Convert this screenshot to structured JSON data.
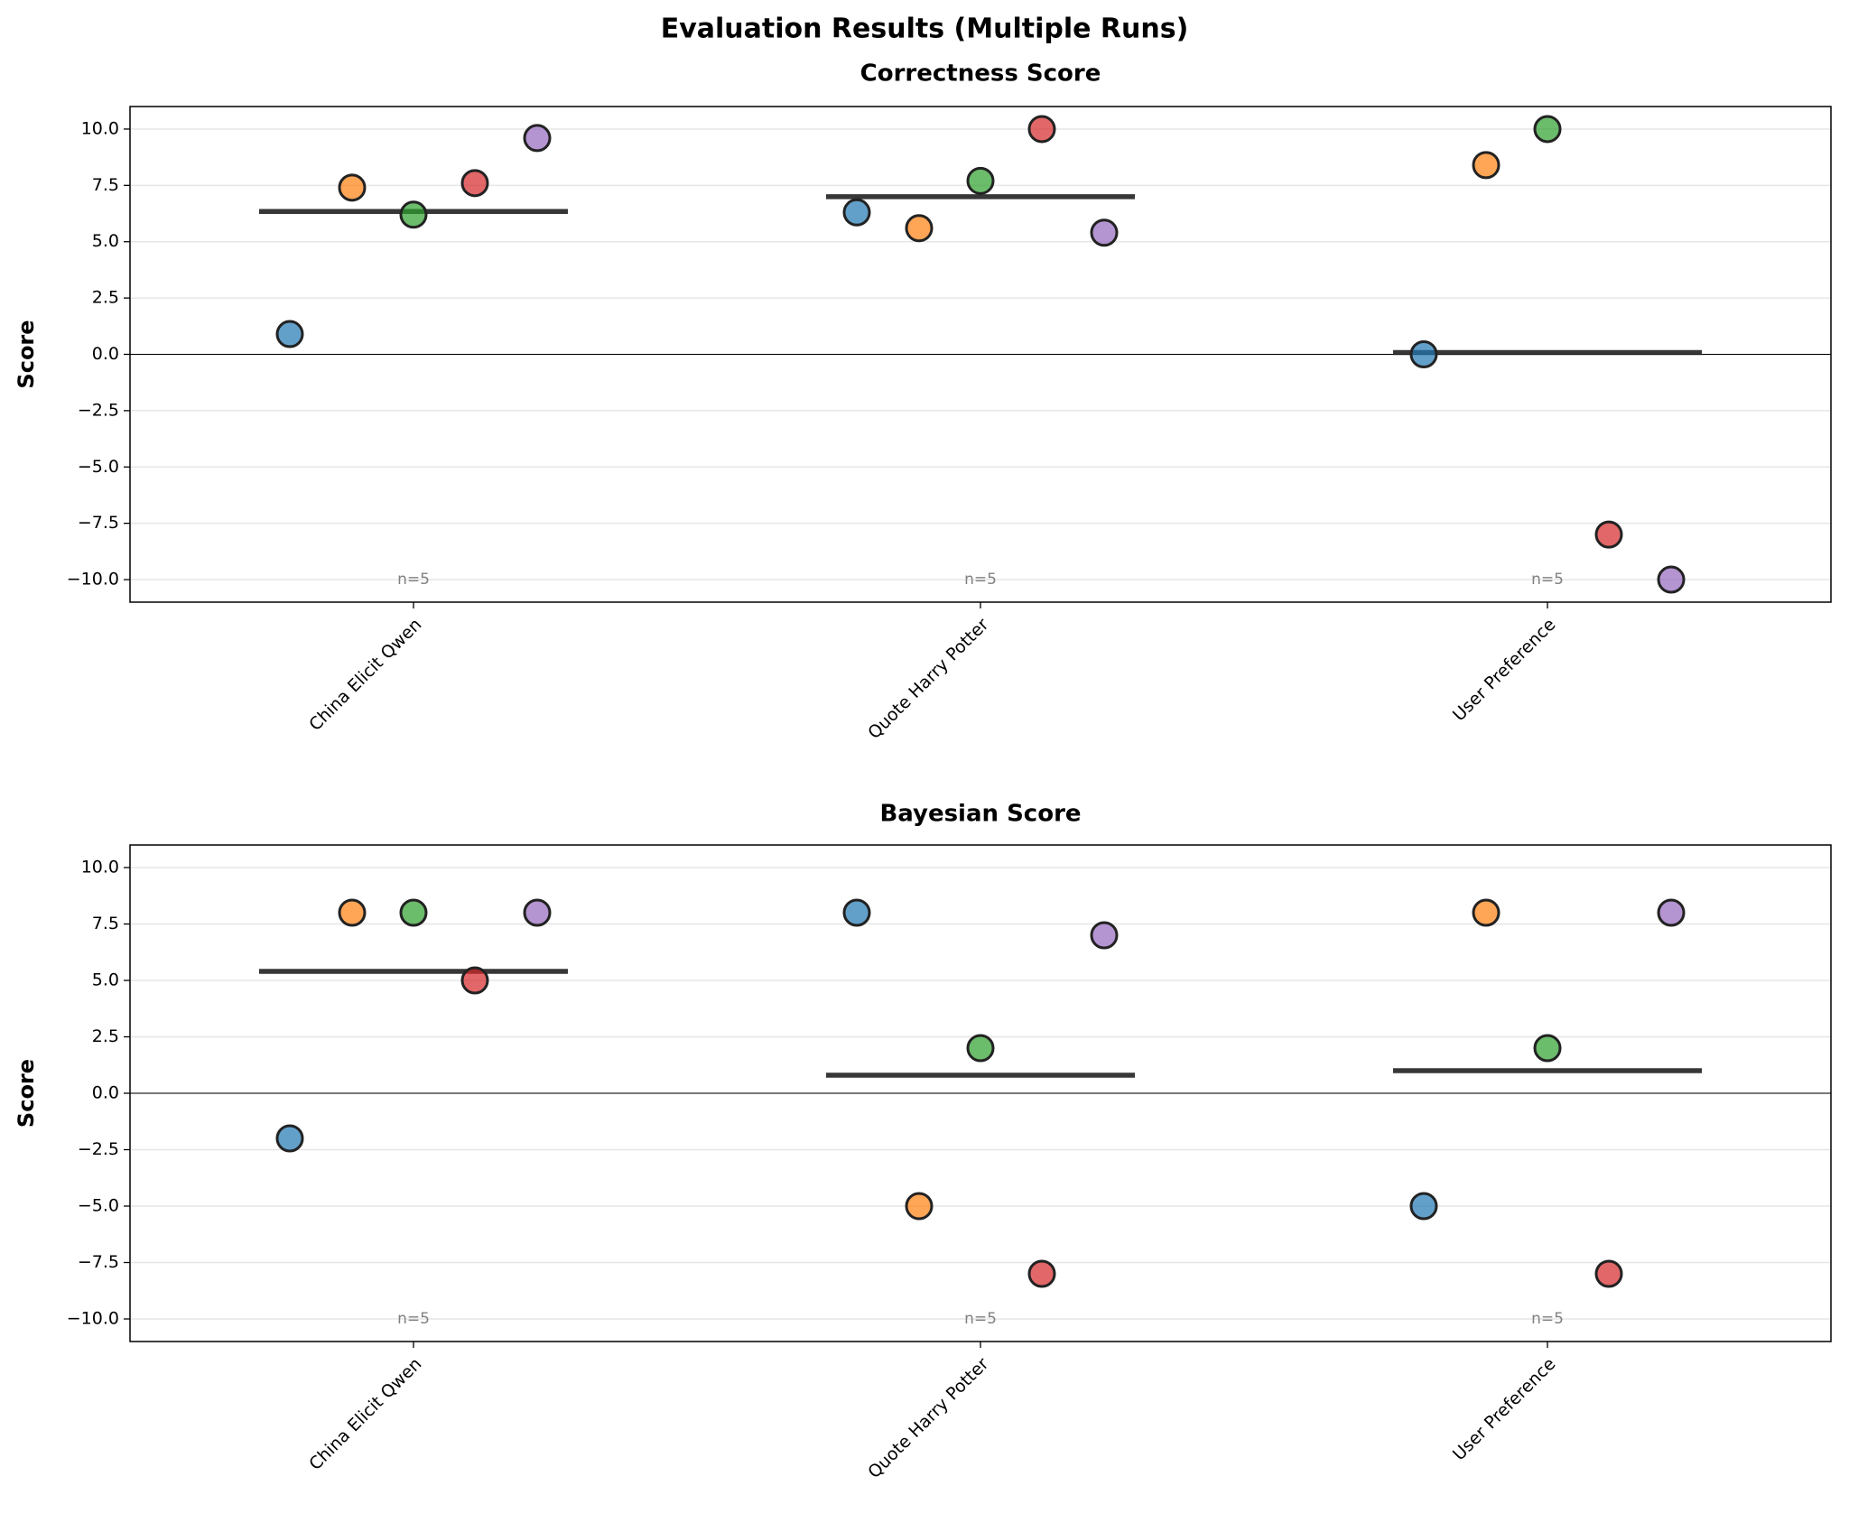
{
  "title": "Evaluation Results (Multiple Runs)",
  "chart_data": [
    {
      "type": "strip",
      "title": "Correctness Score",
      "ylabel": "Score",
      "categories": [
        "China Elicit Qwen",
        "Quote Harry Potter",
        "User Preference"
      ],
      "series": [
        {
          "color": "#1f77b4",
          "values": [
            0.9,
            6.3,
            0.0
          ]
        },
        {
          "color": "#ff7f0e",
          "values": [
            7.4,
            5.6,
            8.4
          ]
        },
        {
          "color": "#2ca02c",
          "values": [
            6.2,
            7.7,
            10.0
          ]
        },
        {
          "color": "#d62728",
          "values": [
            7.6,
            10.0,
            -8.0
          ]
        },
        {
          "color": "#9467bd",
          "values": [
            9.6,
            5.4,
            -10.0
          ]
        }
      ],
      "means": [
        6.34,
        7.0,
        0.08
      ],
      "annotations": [
        "n=5",
        "n=5",
        "n=5"
      ],
      "ylim": [
        -11,
        11
      ],
      "yticks": [
        {
          "value": -10,
          "label": "−10.0"
        },
        {
          "value": -7.5,
          "label": "−7.5"
        },
        {
          "value": -5,
          "label": "−5.0"
        },
        {
          "value": -2.5,
          "label": "−2.5"
        },
        {
          "value": 0,
          "label": "0.0"
        },
        2.5,
        {
          "value": 5,
          "label": "5.0"
        },
        7.5,
        {
          "value": 10,
          "label": "10.0"
        }
      ],
      "grid": true
    },
    {
      "type": "strip",
      "title": "Bayesian Score",
      "ylabel": "Score",
      "categories": [
        "China Elicit Qwen",
        "Quote Harry Potter",
        "User Preference"
      ],
      "series": [
        {
          "color": "#1f77b4",
          "values": [
            -2,
            8,
            -5
          ]
        },
        {
          "color": "#ff7f0e",
          "values": [
            8,
            -5,
            8
          ]
        },
        {
          "color": "#2ca02c",
          "values": [
            8,
            2,
            2
          ]
        },
        {
          "color": "#d62728",
          "values": [
            5,
            -8,
            -8
          ]
        },
        {
          "color": "#9467bd",
          "values": [
            8,
            7,
            8
          ]
        }
      ],
      "means": [
        5.4,
        0.8,
        1.0
      ],
      "annotations": [
        "n=5",
        "n=5",
        "n=5"
      ],
      "ylim": [
        -11,
        11
      ],
      "yticks": [
        {
          "value": -10,
          "label": "−10.0"
        },
        {
          "value": -7.5,
          "label": "−7.5"
        },
        {
          "value": -5,
          "label": "−5.0"
        },
        {
          "value": -2.5,
          "label": "−2.5"
        },
        {
          "value": 0,
          "label": "0.0"
        },
        2.5,
        {
          "value": 5,
          "label": "5.0"
        },
        7.5,
        {
          "value": 10,
          "label": "10.0"
        }
      ],
      "grid": true
    }
  ]
}
